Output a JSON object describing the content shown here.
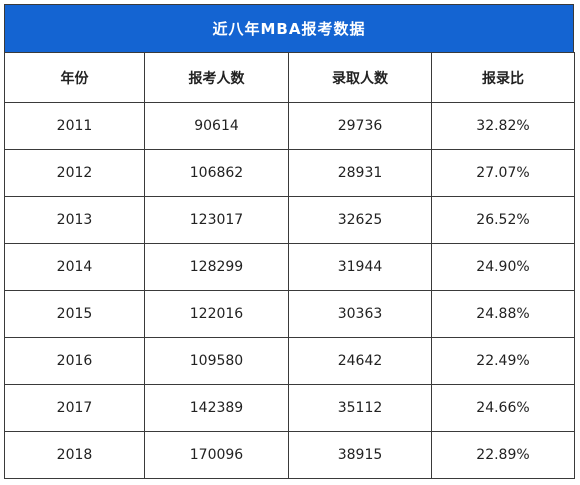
{
  "title": "近八年MBA报考数据",
  "headers": [
    "年份",
    "报考人数",
    "录取人数",
    "报录比"
  ],
  "rows": [
    [
      "2011",
      "90614",
      "29736",
      "32.82%"
    ],
    [
      "2012",
      "106862",
      "28931",
      "27.07%"
    ],
    [
      "2013",
      "123017",
      "32625",
      "26.52%"
    ],
    [
      "2014",
      "128299",
      "31944",
      "24.90%"
    ],
    [
      "2015",
      "122016",
      "30363",
      "24.88%"
    ],
    [
      "2016",
      "109580",
      "24642",
      "22.49%"
    ],
    [
      "2017",
      "142389",
      "35112",
      "24.66%"
    ],
    [
      "2018",
      "170096",
      "38915",
      "22.89%"
    ]
  ],
  "colors": {
    "title_bg": "#1464d2",
    "border": "#3a3a3a"
  }
}
